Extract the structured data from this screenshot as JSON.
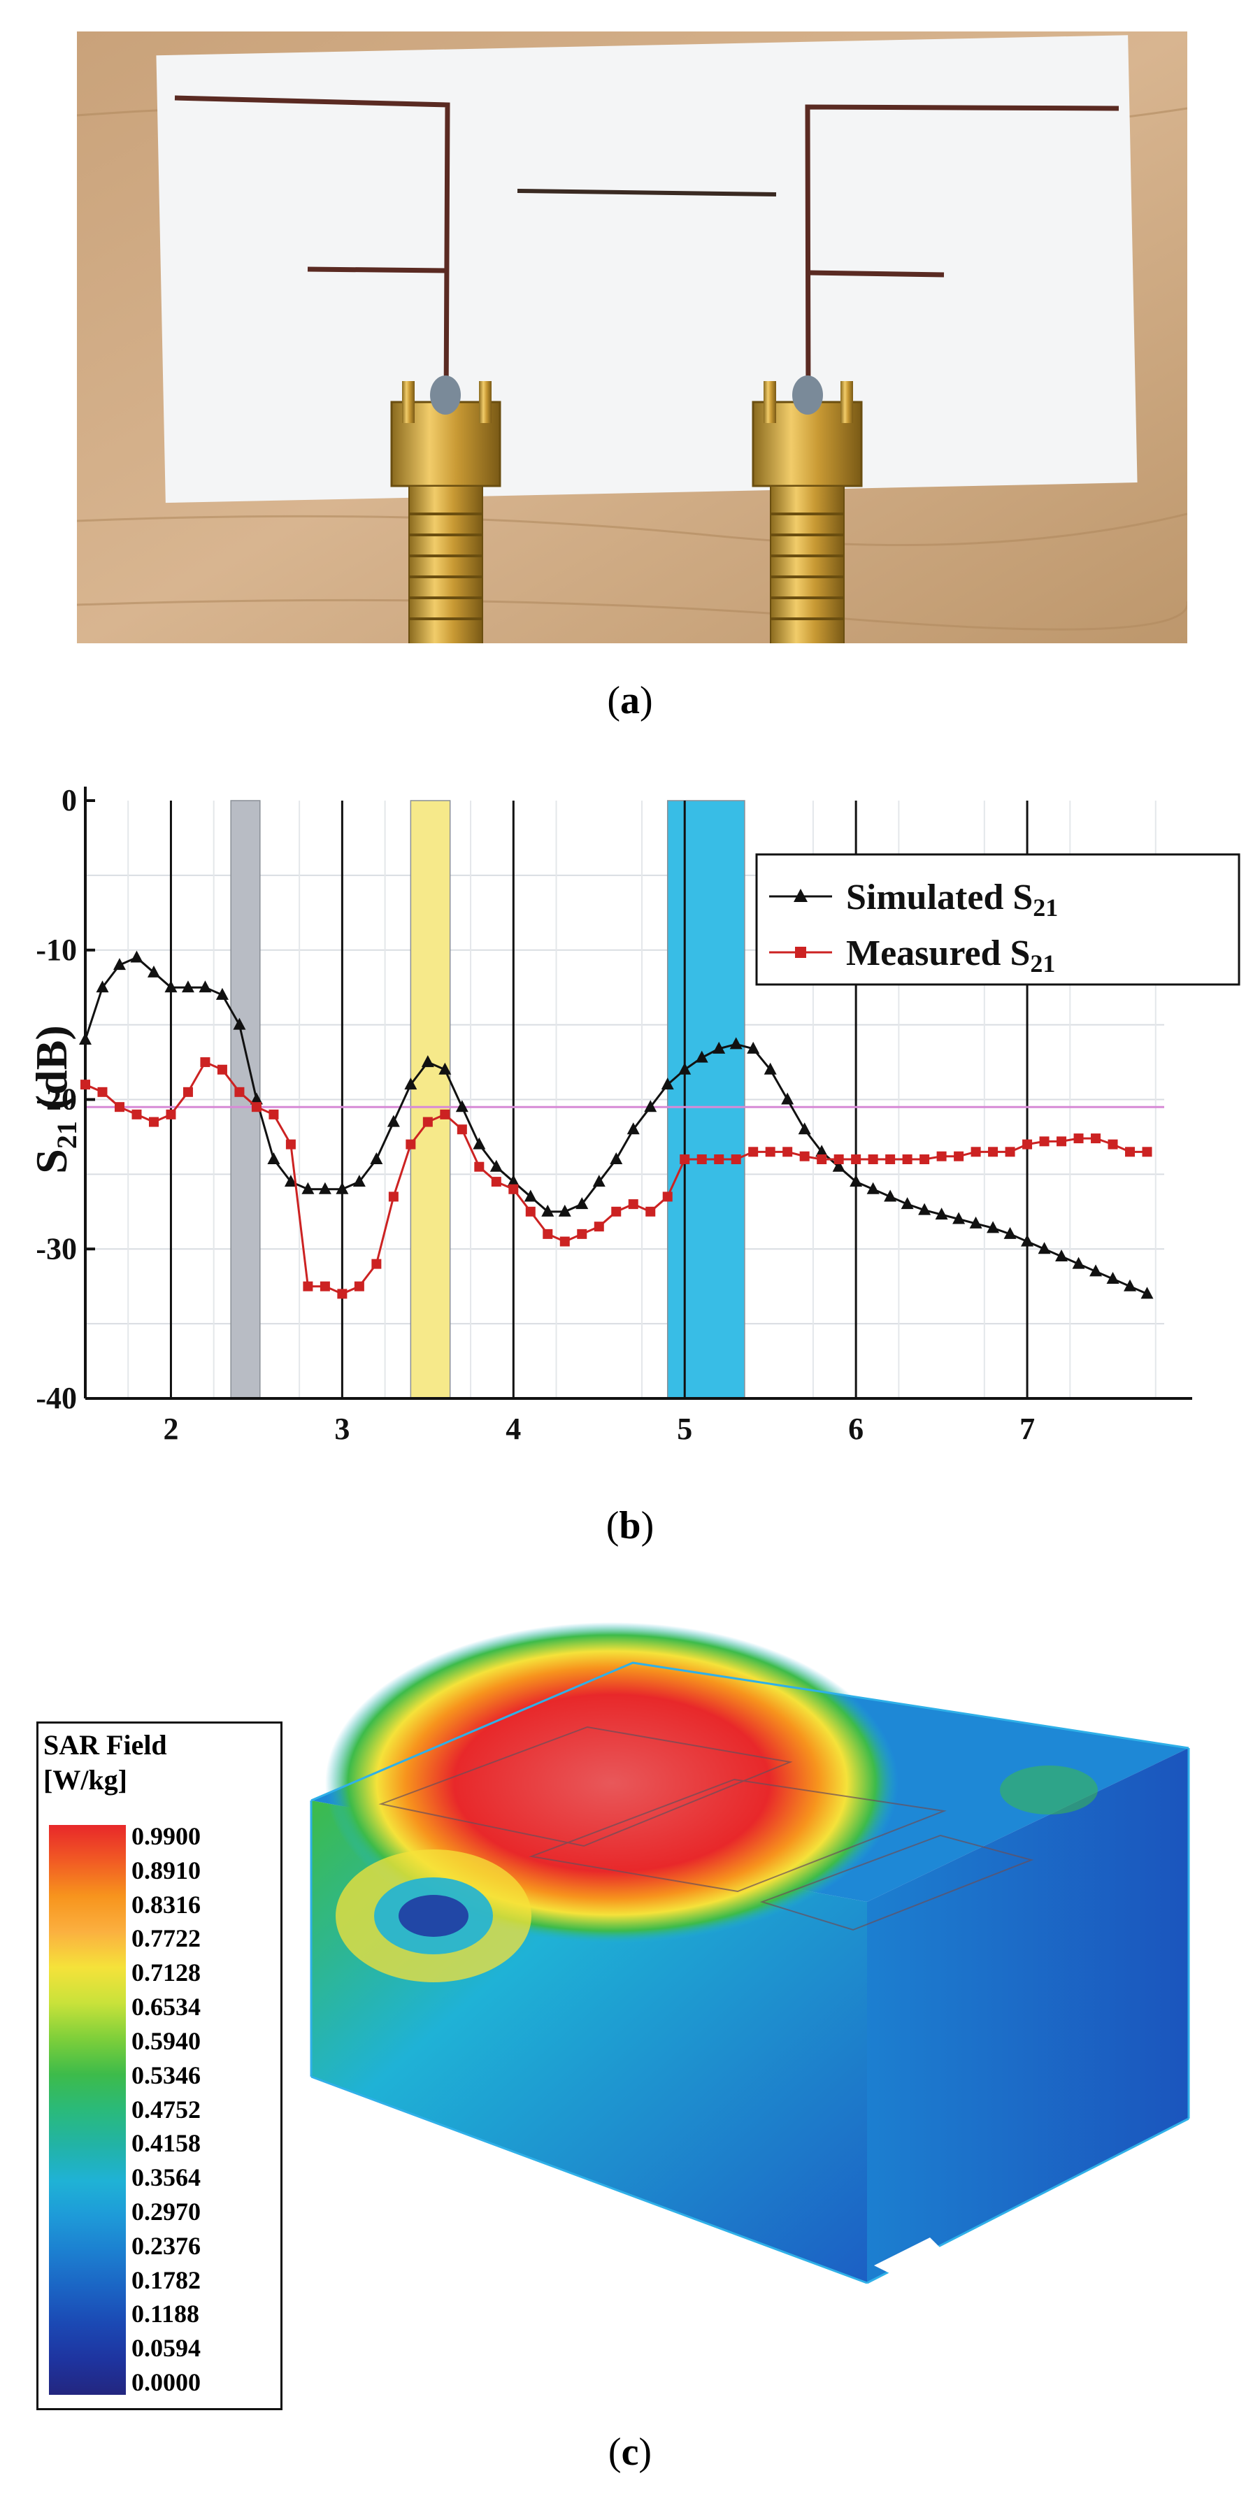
{
  "captions": {
    "a": "a",
    "b": "b",
    "c": "c"
  },
  "chart_data": {
    "type": "line",
    "title": "",
    "xlabel": "",
    "ylabel": "S21 (dB)",
    "ylabel_main": "S",
    "ylabel_sub": "21",
    "ylabel_unit": " (dB)",
    "xlim": [
      1.5,
      7.8
    ],
    "ylim": [
      -40,
      0
    ],
    "x_ticks": [
      2,
      3,
      4,
      5,
      6,
      7
    ],
    "x_tick_labels": [
      "2",
      "3",
      "4",
      "5",
      "6",
      "7"
    ],
    "y_ticks": [
      0,
      -10,
      -20,
      -30,
      -40
    ],
    "y_tick_labels": [
      "0",
      "-10",
      "-20",
      "-30",
      "-40"
    ],
    "grid": true,
    "reference_line_db": -20.5,
    "shaded_bands": [
      {
        "name": "gray-band",
        "x0": 2.35,
        "x1": 2.52,
        "color": "#b8bcc4"
      },
      {
        "name": "yellow-band",
        "x0": 3.4,
        "x1": 3.63,
        "color": "#f6e98a"
      },
      {
        "name": "blue-band",
        "x0": 4.9,
        "x1": 5.35,
        "color": "#38bde6"
      }
    ],
    "legend": {
      "placement": "top-right",
      "entries": [
        {
          "main": "Simulated S",
          "sub": "21"
        },
        {
          "main": "Measured S",
          "sub": "21"
        }
      ]
    },
    "series": [
      {
        "name": "Simulated S21",
        "color": "#111111",
        "marker": "triangle",
        "x": [
          1.5,
          1.6,
          1.7,
          1.8,
          1.9,
          2.0,
          2.1,
          2.2,
          2.3,
          2.4,
          2.5,
          2.6,
          2.7,
          2.8,
          2.9,
          3.0,
          3.1,
          3.2,
          3.3,
          3.4,
          3.5,
          3.6,
          3.7,
          3.8,
          3.9,
          4.0,
          4.1,
          4.2,
          4.3,
          4.4,
          4.5,
          4.6,
          4.7,
          4.8,
          4.9,
          5.0,
          5.1,
          5.2,
          5.3,
          5.4,
          5.5,
          5.6,
          5.7,
          5.8,
          5.9,
          6.0,
          6.1,
          6.2,
          6.3,
          6.4,
          6.5,
          6.6,
          6.7,
          6.8,
          6.9,
          7.0,
          7.1,
          7.2,
          7.3,
          7.4,
          7.5,
          7.6,
          7.7
        ],
        "values": [
          -16,
          -12.5,
          -11,
          -10.5,
          -11.5,
          -12.5,
          -12.5,
          -12.5,
          -13,
          -15,
          -20,
          -24,
          -25.5,
          -26,
          -26,
          -26,
          -25.5,
          -24,
          -21.5,
          -19,
          -17.5,
          -18,
          -20.5,
          -23,
          -24.5,
          -25.5,
          -26.5,
          -27.5,
          -27.5,
          -27,
          -25.5,
          -24,
          -22,
          -20.5,
          -19,
          -18,
          -17.2,
          -16.6,
          -16.3,
          -16.6,
          -18,
          -20,
          -22,
          -23.5,
          -24.5,
          -25.5,
          -26,
          -26.5,
          -27,
          -27.4,
          -27.7,
          -28,
          -28.3,
          -28.6,
          -29,
          -29.5,
          -30,
          -30.5,
          -31,
          -31.5,
          -32,
          -32.5,
          -33
        ]
      },
      {
        "name": "Measured S21",
        "color": "#cc2222",
        "marker": "square",
        "x": [
          1.5,
          1.6,
          1.7,
          1.8,
          1.9,
          2.0,
          2.1,
          2.2,
          2.3,
          2.4,
          2.5,
          2.6,
          2.7,
          2.8,
          2.9,
          3.0,
          3.1,
          3.2,
          3.3,
          3.4,
          3.5,
          3.6,
          3.7,
          3.8,
          3.9,
          4.0,
          4.1,
          4.2,
          4.3,
          4.4,
          4.5,
          4.6,
          4.7,
          4.8,
          4.9,
          5.0,
          5.1,
          5.2,
          5.3,
          5.4,
          5.5,
          5.6,
          5.7,
          5.8,
          5.9,
          6.0,
          6.1,
          6.2,
          6.3,
          6.4,
          6.5,
          6.6,
          6.7,
          6.8,
          6.9,
          7.0,
          7.1,
          7.2,
          7.3,
          7.4,
          7.5,
          7.6,
          7.7
        ],
        "values": [
          -19,
          -19.5,
          -20.5,
          -21,
          -21.5,
          -21,
          -19.5,
          -17.5,
          -18,
          -19.5,
          -20.5,
          -21,
          -23,
          -32.5,
          -32.5,
          -33,
          -32.5,
          -31,
          -26.5,
          -23,
          -21.5,
          -21,
          -22,
          -24.5,
          -25.5,
          -26,
          -27.5,
          -29,
          -29.5,
          -29,
          -28.5,
          -27.5,
          -27,
          -27.5,
          -26.5,
          -24,
          -24,
          -24,
          -24,
          -23.5,
          -23.5,
          -23.5,
          -23.8,
          -24,
          -24,
          -24,
          -24,
          -24,
          -24,
          -24,
          -23.8,
          -23.8,
          -23.5,
          -23.5,
          -23.5,
          -23,
          -22.8,
          -22.8,
          -22.6,
          -22.6,
          -23,
          -23.5,
          -23.5
        ]
      }
    ]
  },
  "sar": {
    "title_line1": "SAR Field",
    "title_line2": "[W/kg]",
    "unit": "W/kg",
    "values": [
      "0.9900",
      "0.8910",
      "0.8316",
      "0.7722",
      "0.7128",
      "0.6534",
      "0.5940",
      "0.5346",
      "0.4752",
      "0.4158",
      "0.3564",
      "0.2970",
      "0.2376",
      "0.1782",
      "0.1188",
      "0.0594",
      "0.0000"
    ],
    "colors": [
      "#e8282a",
      "#f15a24",
      "#f7941d",
      "#fbb040",
      "#f5e23a",
      "#c9e23a",
      "#7ecf3a",
      "#3dbb4a",
      "#2aba7a",
      "#22b3a6",
      "#1fb2d6",
      "#1e9ad8",
      "#1c7fd0",
      "#1b64c4",
      "#1b49b4",
      "#1e34a0",
      "#23267f"
    ]
  }
}
